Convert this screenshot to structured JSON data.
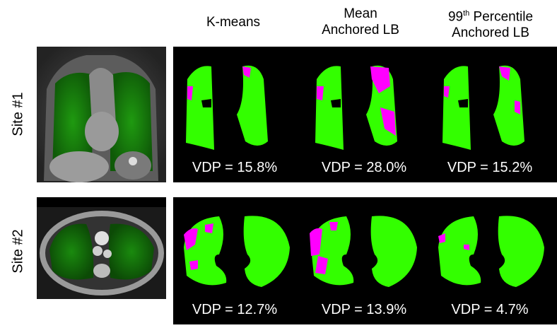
{
  "columns": {
    "kmeans": "K-means",
    "mean_line1": "Mean",
    "mean_line2": "Anchored LB",
    "p99_number": "99",
    "p99_sup": "th",
    "p99_rest": " Percentile",
    "p99_line2": "Anchored LB"
  },
  "rows": {
    "site1": "Site #1",
    "site2": "Site #2"
  },
  "vdp": {
    "site1_kmeans": "VDP = 15.8%",
    "site1_mean": "VDP = 28.0%",
    "site1_p99": "VDP = 15.2%",
    "site2_kmeans": "VDP = 12.7%",
    "site2_mean": "VDP = 13.9%",
    "site2_p99": "VDP = 4.7%"
  },
  "colors": {
    "ventilated": "#33ff00",
    "defect": "#ff00ff",
    "background": "#000000"
  }
}
